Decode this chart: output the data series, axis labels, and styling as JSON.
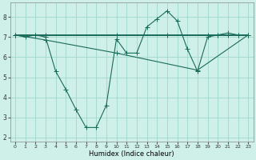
{
  "background_color": "#cff0e8",
  "grid_color": "#a0d8cc",
  "line_color": "#1a6b5a",
  "xlabel": "Humidex (Indice chaleur)",
  "xlim": [
    -0.5,
    23.5
  ],
  "ylim": [
    1.8,
    8.7
  ],
  "yticks": [
    2,
    3,
    4,
    5,
    6,
    7,
    8
  ],
  "xticks": [
    0,
    1,
    2,
    3,
    4,
    5,
    6,
    7,
    8,
    9,
    10,
    11,
    12,
    13,
    14,
    15,
    16,
    17,
    18,
    19,
    20,
    21,
    22,
    23
  ],
  "line1_x": [
    0,
    1,
    2,
    3,
    4,
    5,
    6,
    7,
    8,
    9,
    10,
    11,
    12,
    13,
    14,
    15,
    16,
    17,
    18,
    19,
    20,
    21,
    22,
    23
  ],
  "line1_y": [
    7.1,
    7.0,
    7.1,
    7.0,
    5.3,
    4.4,
    3.4,
    2.5,
    2.5,
    3.6,
    6.9,
    6.2,
    6.2,
    7.5,
    7.9,
    8.3,
    7.8,
    6.4,
    5.3,
    7.0,
    7.1,
    7.2,
    7.1,
    7.1
  ],
  "line2_x": [
    0,
    2,
    3,
    10,
    15,
    19,
    20,
    21,
    22,
    23
  ],
  "line2_y": [
    7.1,
    7.1,
    7.1,
    7.1,
    7.1,
    7.1,
    7.1,
    7.1,
    7.1,
    7.1
  ],
  "line3_x": [
    0,
    3,
    10,
    18,
    23
  ],
  "line3_y": [
    7.1,
    6.85,
    6.2,
    5.35,
    7.1
  ],
  "marker": "+",
  "markersize": 4,
  "linewidth": 0.8
}
